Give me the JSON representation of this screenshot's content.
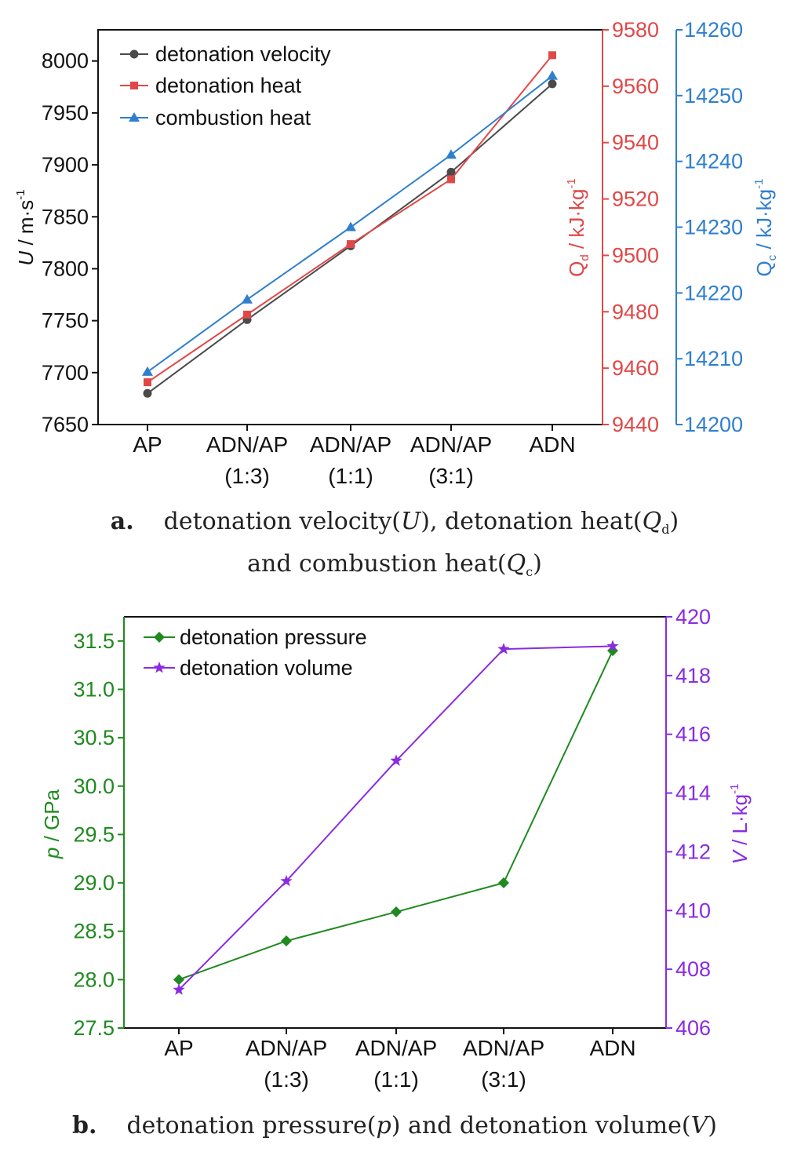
{
  "chart_data": [
    {
      "type": "line",
      "panel": "a",
      "categories": [
        "AP",
        "ADN/AP\n(1:3)",
        "ADN/AP\n(1:1)",
        "ADN/AP\n(3:1)",
        "ADN"
      ],
      "ylabel": "U / m·s⁻¹",
      "ylabel_right": "Qd / kJ·kg⁻¹",
      "ylabel_right2": "Qc / kJ·kg⁻¹",
      "y_ticks": [
        "7650",
        "7700",
        "7750",
        "7800",
        "7850",
        "7900",
        "7950",
        "8000"
      ],
      "y2_ticks": [
        "9440",
        "9460",
        "9480",
        "9500",
        "9520",
        "9540",
        "9560",
        "9580"
      ],
      "y3_ticks": [
        "14200",
        "14210",
        "14220",
        "14230",
        "14240",
        "14250",
        "14260"
      ],
      "ylim": [
        7650,
        8030
      ],
      "y2lim": [
        9440,
        9580
      ],
      "y3lim": [
        14200,
        14260
      ],
      "legend_position": "top-left",
      "grid": false,
      "series": [
        {
          "name": "detonation velocity",
          "axis": "left",
          "color": "#4a4a4a",
          "marker": "circle",
          "values": [
            7680,
            7751,
            7822,
            7893,
            7978
          ]
        },
        {
          "name": "detonation heat",
          "axis": "right",
          "color": "#e04848",
          "marker": "square",
          "values": [
            9455,
            9479,
            9504,
            9527,
            9571
          ]
        },
        {
          "name": "combustion heat",
          "axis": "right2",
          "color": "#2f7fcf",
          "marker": "triangle",
          "values": [
            14208,
            14219,
            14230,
            14241,
            14253
          ]
        }
      ],
      "caption": {
        "label": "a.",
        "line1_a": "detonation velocity(",
        "line1_u": "U",
        "line1_b": "), detonation heat(",
        "line1_q": "Q",
        "line1_qsub": "d",
        "line1_c": ")",
        "line2_a": "and combustion heat(",
        "line2_q": "Q",
        "line2_qsub": "c",
        "line2_c": ")"
      }
    },
    {
      "type": "line",
      "panel": "b",
      "categories": [
        "AP",
        "ADN/AP\n(1:3)",
        "ADN/AP\n(1:1)",
        "ADN/AP\n(3:1)",
        "ADN"
      ],
      "ylabel": "p / GPa",
      "ylabel_right": "V / L·kg⁻¹",
      "y_ticks": [
        "27.5",
        "28.0",
        "28.5",
        "29.0",
        "29.5",
        "30.0",
        "30.5",
        "31.0",
        "31.5"
      ],
      "y2_ticks": [
        "406",
        "408",
        "410",
        "412",
        "414",
        "416",
        "418",
        "420"
      ],
      "ylim": [
        27.5,
        31.75
      ],
      "y2lim": [
        406,
        420
      ],
      "legend_position": "top-left",
      "grid": false,
      "series": [
        {
          "name": "detonation pressure",
          "axis": "left",
          "color": "#1f8a1f",
          "marker": "diamond",
          "values": [
            28.0,
            28.4,
            28.7,
            29.0,
            31.4
          ]
        },
        {
          "name": "detonation volume",
          "axis": "right",
          "color": "#8a2be2",
          "marker": "star",
          "values": [
            407.3,
            411.0,
            415.1,
            418.9,
            419.0
          ]
        }
      ],
      "caption": {
        "label": "b.",
        "line1_a": "detonation pressure(",
        "line1_p": "p",
        "line1_b": ") and detonation volume(",
        "line1_v": "V",
        "line1_c": ")"
      }
    }
  ]
}
